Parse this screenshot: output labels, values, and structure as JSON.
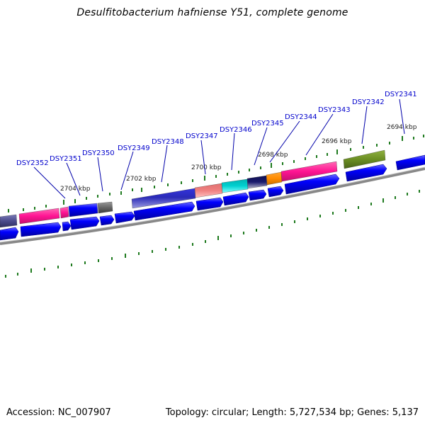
{
  "title": "Desulfitobacterium hafniense Y51, complete genome",
  "footer": {
    "accession": "Accession: NC_007907",
    "summary": "Topology: circular; Length: 5,727,534 bp; Genes: 5,137"
  },
  "scale_labels": [
    "2704 kbp",
    "2702 kbp",
    "2700 kbp",
    "2698 kbp",
    "2696 kbp",
    "2694 kbp"
  ],
  "gene_labels": [
    "DSY2352",
    "DSY2351",
    "DSY2350",
    "DSY2349",
    "DSY2348",
    "DSY2347",
    "DSY2346",
    "DSY2345",
    "DSY2344",
    "DSY2343",
    "DSY2342",
    "DSY2341"
  ],
  "colors": {
    "cds_arrow": "#0000ff",
    "label_text": "#0000cc",
    "leader_line": "#0000aa",
    "tick": "#1e7a1e",
    "backbone": "#888888",
    "cog_magenta": "#ff1493",
    "cog_slate": "#4b4b8c",
    "cog_gray": "#666666",
    "cog_blue": "#2222cc",
    "cog_salmon": "#f08080",
    "cog_cyan": "#00c8c8",
    "cog_navy": "#1a1a6e",
    "cog_orange": "#ff8c00",
    "cog_olive": "#6b8e23"
  }
}
